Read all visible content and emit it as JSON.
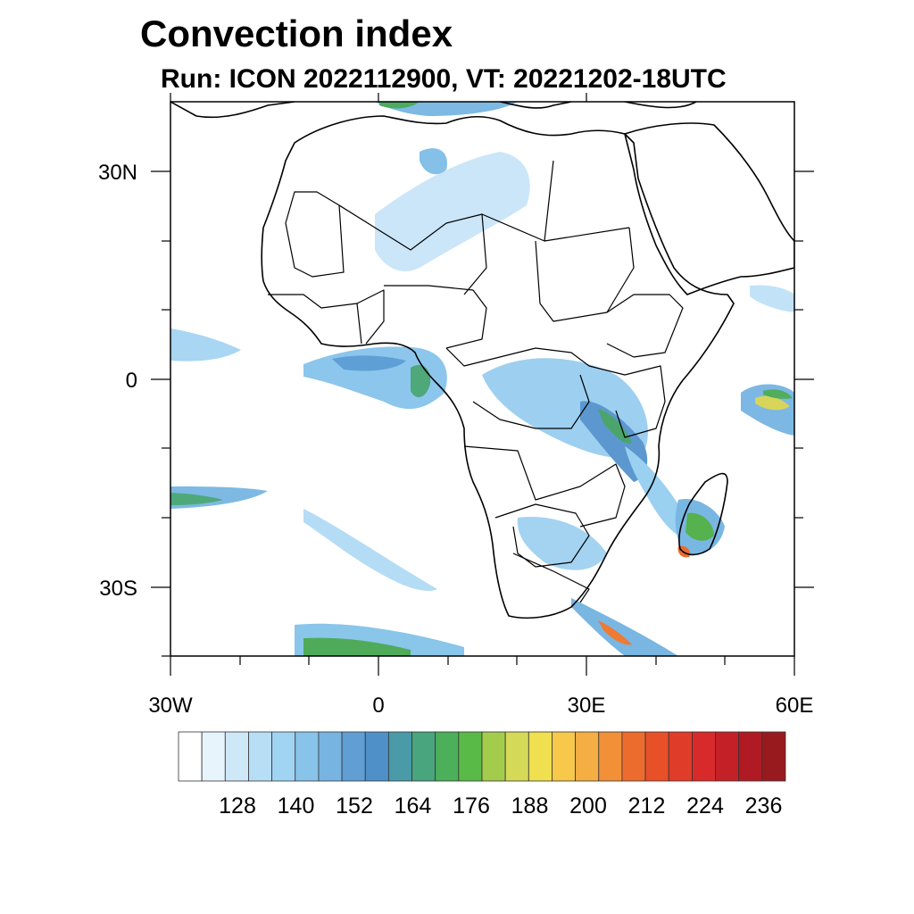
{
  "title": "Convection index",
  "subtitle": "Run: ICON 2022112900,  VT: 20221202-18UTC",
  "map": {
    "lon_range": [
      -30,
      60
    ],
    "lat_range": [
      -40,
      40
    ],
    "lon_ticks": [
      {
        "value": -30,
        "label": "30W"
      },
      {
        "value": 0,
        "label": "0"
      },
      {
        "value": 30,
        "label": "30E"
      },
      {
        "value": 60,
        "label": "60E"
      }
    ],
    "lat_ticks": [
      {
        "value": 30,
        "label": "30N"
      },
      {
        "value": 0,
        "label": "0"
      },
      {
        "value": -30,
        "label": "30S"
      }
    ],
    "minor_lon_ticks": [
      -20,
      -10,
      10,
      20,
      40,
      50
    ],
    "minor_lat_ticks": [
      20,
      10,
      -10,
      -20,
      -40
    ]
  },
  "colorbar": {
    "colors": [
      "#ffffff",
      "#e8f4fc",
      "#cfe8f8",
      "#b8def5",
      "#a0d4f3",
      "#88c4ea",
      "#78b4e2",
      "#609ed4",
      "#5090c8",
      "#4a9aa8",
      "#48a57e",
      "#4caf5a",
      "#5aba48",
      "#a4cc4c",
      "#d4da58",
      "#f0e050",
      "#f8c84a",
      "#f4ae44",
      "#f29038",
      "#ec6c2e",
      "#e85028",
      "#e03c2a",
      "#d82a2a",
      "#c42028",
      "#b01a22",
      "#981a1e"
    ],
    "labels": [
      "128",
      "140",
      "152",
      "164",
      "176",
      "188",
      "200",
      "212",
      "224",
      "236"
    ]
  },
  "legend_colors": {
    "light_blue": "#a8d6f2",
    "blue": "#6ea9dc",
    "green": "#4caf5a",
    "yellow": "#ecd84a",
    "orange": "#f29038",
    "red": "#d82a2a"
  }
}
